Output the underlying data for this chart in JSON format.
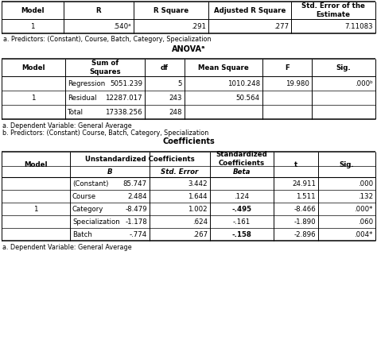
{
  "bg_color": "#ffffff",
  "ms_headers": [
    "Model",
    "R",
    "R Square",
    "Adjusted R Square",
    "Std. Error of the\nEstimate"
  ],
  "ms_row": [
    "1",
    ".540ᵃ",
    ".291",
    ".277",
    "7.11083"
  ],
  "ms_note": "a. Predictors: (Constant), Course, Batch, Category, Specialization",
  "anova_title": "ANOVAᵃ",
  "anova_headers": [
    "Model",
    "Sum of\nSquares",
    "df",
    "Mean Square",
    "F",
    "Sig."
  ],
  "anova_rows": [
    [
      "",
      "Regression",
      "5051.239",
      "5",
      "1010.248",
      "19.980",
      ".000ᵇ"
    ],
    [
      "1",
      "Residual",
      "12287.017",
      "243",
      "50.564",
      "",
      ""
    ],
    [
      "",
      "Total",
      "17338.256",
      "248",
      "",
      "",
      ""
    ]
  ],
  "anova_note_a": "a. Dependent Variable: General Average",
  "anova_note_b": "b. Predictors: (Constant) Course, Batch, Category, Specialization",
  "coeff_title": "Coefficients",
  "coeff_rows": [
    [
      "",
      "(Constant)",
      "85.747",
      "3.442",
      "",
      "24.911",
      ".000"
    ],
    [
      "",
      "Course",
      "2.484",
      "1.644",
      ".124",
      "1.511",
      ".132"
    ],
    [
      "1",
      "Category",
      "-8.479",
      "1.002",
      "-.495",
      "-8.466",
      ".000*"
    ],
    [
      "",
      "Specialization",
      "-1.178",
      ".624",
      "-.161",
      "-1.890",
      ".060"
    ],
    [
      "",
      "Batch",
      "-.774",
      ".267",
      "-.158",
      "-2.896",
      ".004*"
    ]
  ],
  "coeff_note": "a. Dependent Variable: General Average",
  "bold_beta": [
    "-.495",
    "-.158"
  ]
}
